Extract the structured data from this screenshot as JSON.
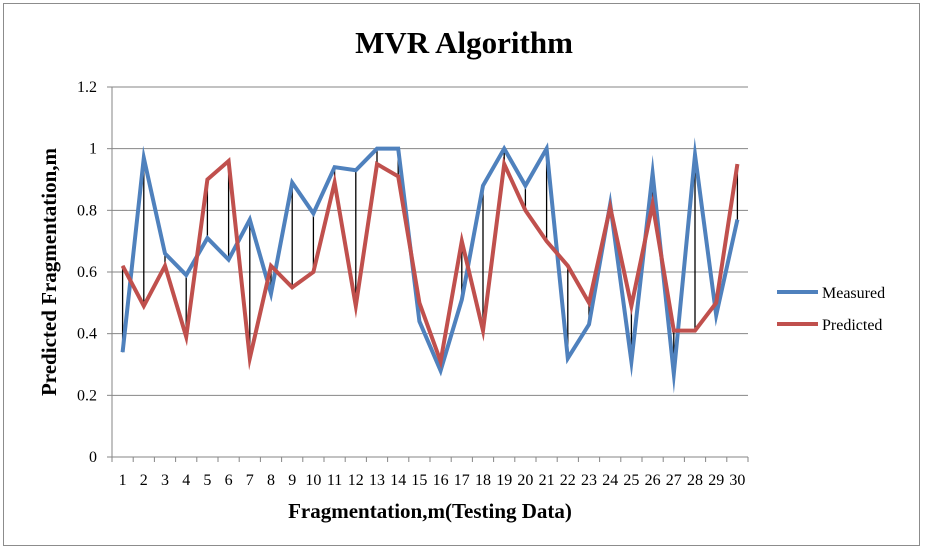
{
  "chart_data": {
    "type": "line",
    "title": "MVR Algorithm",
    "xlabel": "Fragmentation,m(Testing Data)",
    "ylabel": "Predicted Fragmentation,m",
    "ylim": [
      0,
      1.2
    ],
    "yticks": [
      "0",
      "0.2",
      "0.4",
      "0.6",
      "0.8",
      "1",
      "1.2"
    ],
    "ytick_values": [
      0,
      0.2,
      0.4,
      0.6,
      0.8,
      1,
      1.2
    ],
    "categories": [
      "1",
      "2",
      "3",
      "4",
      "5",
      "6",
      "7",
      "8",
      "9",
      "10",
      "11",
      "12",
      "13",
      "14",
      "15",
      "16",
      "17",
      "18",
      "19",
      "20",
      "21",
      "22",
      "23",
      "24",
      "25",
      "26",
      "27",
      "28",
      "29",
      "30"
    ],
    "grid": "horizontal",
    "legend_position": "right",
    "drop_lines": true,
    "series": [
      {
        "name": "Measured",
        "color": "#4F81BD",
        "values": [
          0.34,
          0.97,
          0.66,
          0.59,
          0.71,
          0.64,
          0.77,
          0.53,
          0.89,
          0.79,
          0.94,
          0.93,
          1.0,
          1.0,
          0.44,
          0.28,
          0.51,
          0.88,
          1.0,
          0.88,
          1.0,
          0.32,
          0.43,
          0.82,
          0.31,
          0.92,
          0.27,
          0.98,
          0.46,
          0.77
        ]
      },
      {
        "name": "Predicted",
        "color": "#C0504D",
        "values": [
          0.62,
          0.49,
          0.62,
          0.39,
          0.9,
          0.96,
          0.32,
          0.62,
          0.55,
          0.6,
          0.89,
          0.49,
          0.95,
          0.91,
          0.5,
          0.31,
          0.7,
          0.41,
          0.95,
          0.8,
          0.7,
          0.62,
          0.5,
          0.81,
          0.49,
          0.82,
          0.41,
          0.41,
          0.5,
          0.95
        ]
      }
    ]
  }
}
